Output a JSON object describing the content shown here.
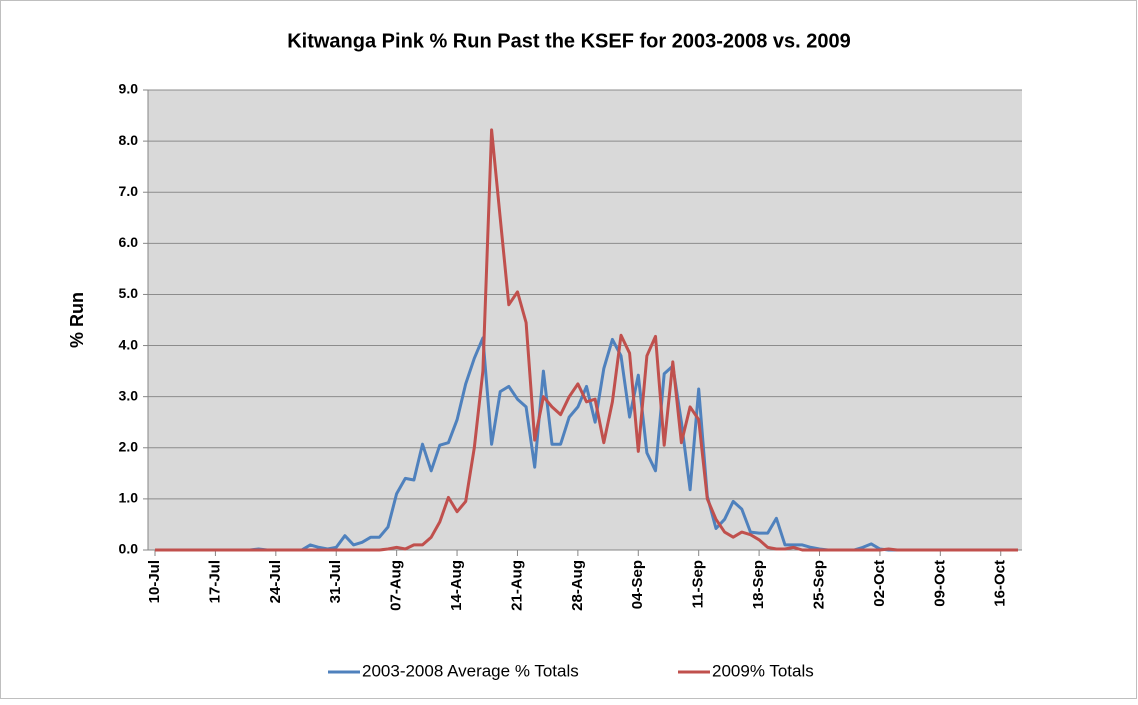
{
  "chart_data": {
    "type": "line",
    "title": "Kitwanga Pink % Run Past the KSEF for 2003-2008 vs. 2009",
    "y_label": "% Run",
    "categories": [
      "10-Jul",
      null,
      null,
      null,
      null,
      null,
      null,
      "17-Jul",
      null,
      null,
      null,
      null,
      null,
      null,
      "24-Jul",
      null,
      null,
      null,
      null,
      null,
      null,
      "31-Jul",
      null,
      null,
      null,
      null,
      null,
      null,
      "07-Aug",
      null,
      null,
      null,
      null,
      null,
      null,
      "14-Aug",
      null,
      null,
      null,
      null,
      null,
      null,
      "21-Aug",
      null,
      null,
      null,
      null,
      null,
      null,
      "28-Aug",
      null,
      null,
      null,
      null,
      null,
      null,
      "04-Sep",
      null,
      null,
      null,
      null,
      null,
      null,
      "11-Sep",
      null,
      null,
      null,
      null,
      null,
      null,
      "18-Sep",
      null,
      null,
      null,
      null,
      null,
      null,
      "25-Sep",
      null,
      null,
      null,
      null,
      null,
      null,
      "02-Oct",
      null,
      null,
      null,
      null,
      null,
      null,
      "09-Oct",
      null,
      null,
      null,
      null,
      null,
      null,
      "16-Oct",
      null,
      null
    ],
    "series": [
      {
        "name": "2003-2008 Average % Totals",
        "color": "#4f81bd",
        "values": [
          0,
          0,
          0,
          0,
          0,
          0,
          0,
          0,
          0,
          0,
          0,
          0,
          0.02,
          0,
          0,
          0,
          0,
          0,
          0.1,
          0.05,
          0.02,
          0.05,
          0.28,
          0.1,
          0.15,
          0.25,
          0.25,
          0.45,
          1.1,
          1.4,
          1.37,
          2.07,
          1.55,
          2.05,
          2.1,
          2.55,
          3.25,
          3.75,
          4.15,
          2.07,
          3.1,
          3.2,
          2.95,
          2.8,
          1.62,
          3.5,
          2.07,
          2.07,
          2.6,
          2.8,
          3.2,
          2.5,
          3.55,
          4.12,
          3.8,
          2.6,
          3.42,
          1.9,
          1.55,
          3.45,
          3.6,
          2.5,
          1.18,
          3.15,
          1.05,
          0.42,
          0.6,
          0.95,
          0.8,
          0.35,
          0.33,
          0.33,
          0.62,
          0.1,
          0.1,
          0.1,
          0.05,
          0.02,
          0,
          0,
          0,
          0,
          0.05,
          0.12,
          0.02,
          0,
          0,
          0,
          0,
          0,
          0,
          0,
          0,
          0,
          0,
          0,
          0,
          0,
          0,
          0,
          0
        ]
      },
      {
        "name": "2009% Totals",
        "color": "#c0504d",
        "values": [
          0,
          0,
          0,
          0,
          0,
          0,
          0,
          0,
          0,
          0,
          0,
          0,
          0,
          0,
          0,
          0,
          0,
          0,
          0,
          0,
          0,
          0,
          0,
          0,
          0,
          0,
          0,
          0.02,
          0.05,
          0.02,
          0.1,
          0.1,
          0.25,
          0.55,
          1.03,
          0.75,
          0.95,
          2.0,
          3.5,
          8.22,
          6.5,
          4.8,
          5.05,
          4.45,
          2.15,
          3.0,
          2.8,
          2.65,
          3.0,
          3.25,
          2.9,
          2.95,
          2.1,
          2.9,
          4.2,
          3.85,
          1.93,
          3.8,
          4.18,
          2.05,
          3.68,
          2.1,
          2.8,
          2.55,
          1.0,
          0.6,
          0.35,
          0.25,
          0.35,
          0.3,
          0.2,
          0.05,
          0.02,
          0.02,
          0.05,
          0,
          0,
          0,
          0,
          0,
          0,
          0,
          0,
          0,
          0,
          0.02,
          0,
          0,
          0,
          0,
          0,
          0,
          0,
          0,
          0,
          0,
          0,
          0,
          0,
          0,
          0
        ]
      }
    ],
    "ylim": [
      0,
      9
    ],
    "yticks": [
      {
        "value": 0,
        "label": "0.0"
      },
      {
        "value": 1,
        "label": "1.0"
      },
      {
        "value": 2,
        "label": "2.0"
      },
      {
        "value": 3,
        "label": "3.0"
      },
      {
        "value": 4,
        "label": "4.0"
      },
      {
        "value": 5,
        "label": "5.0"
      },
      {
        "value": 6,
        "label": "6.0"
      },
      {
        "value": 7,
        "label": "7.0"
      },
      {
        "value": 8,
        "label": "8.0"
      },
      {
        "value": 9,
        "label": "9.0"
      }
    ],
    "grid": true,
    "legend": "bottom"
  }
}
